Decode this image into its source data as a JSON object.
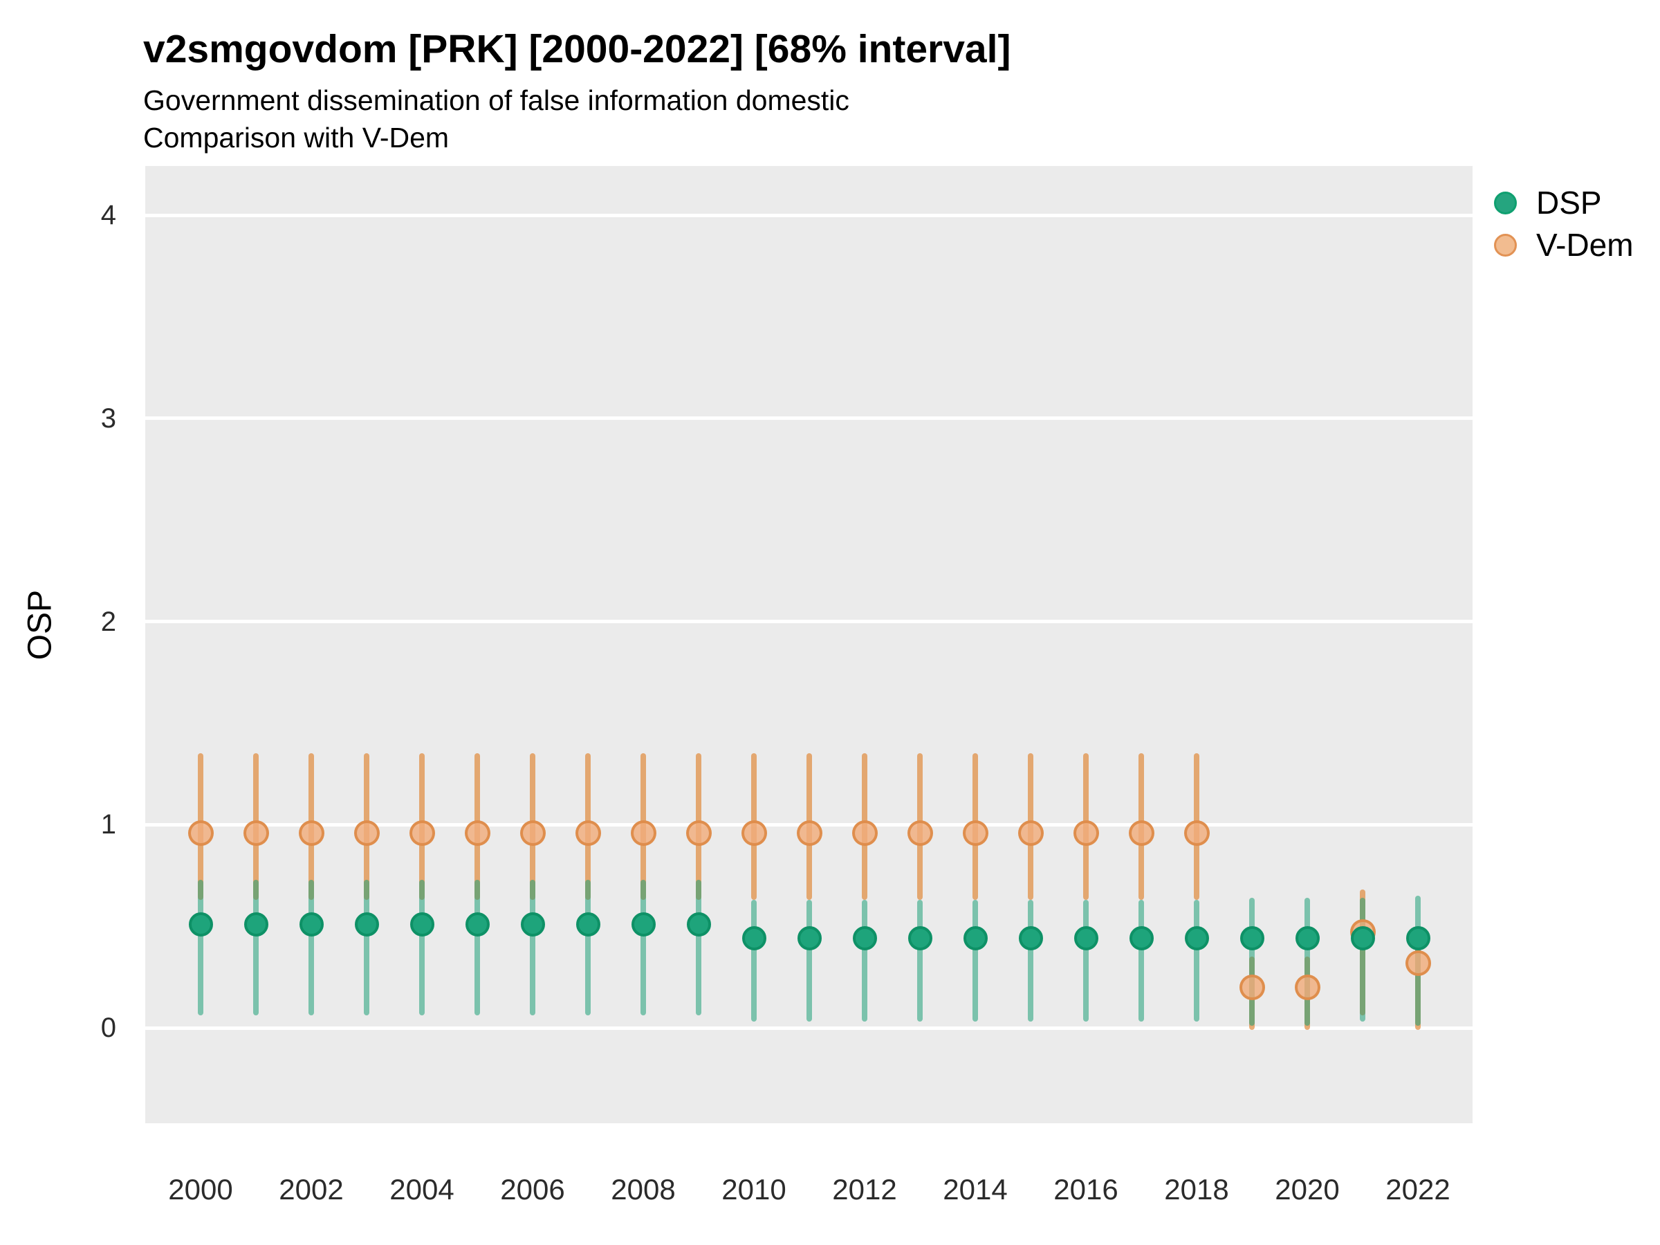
{
  "header": {
    "title": "v2smgovdom [PRK] [2000-2022] [68% interval]",
    "subtitle1": "Government dissemination of false information domestic",
    "subtitle2": "Comparison with V-Dem"
  },
  "axes": {
    "y_label": "OSP",
    "y_ticks": [
      0,
      1,
      2,
      3,
      4
    ],
    "x_ticks": [
      2000,
      2002,
      2004,
      2006,
      2008,
      2010,
      2012,
      2014,
      2016,
      2018,
      2020,
      2022
    ]
  },
  "legend": {
    "items": [
      {
        "label": "DSP",
        "color": "#1FA179"
      },
      {
        "label": "V-Dem",
        "color": "#E08A3C"
      }
    ],
    "position": "right"
  },
  "colors": {
    "panel_background": "#EBEBEB",
    "gridline": "#FFFFFF",
    "dsp_point_fill": "#1EA47B",
    "dsp_point_border": "#0E9166",
    "dsp_bar": "#1FA179",
    "vdem_point_fill": "#F0AC7B",
    "vdem_point_border": "#DE8C4A",
    "vdem_bar": "#E08A3C"
  },
  "chart_data": {
    "type": "scatter",
    "title": "v2smgovdom [PRK] [2000-2022] [68% interval]",
    "subtitle": [
      "Government dissemination of false information domestic",
      "Comparison with V-Dem"
    ],
    "interval": "68%",
    "xlabel": "",
    "ylabel": "OSP",
    "ylim": [
      -0.47,
      4.24
    ],
    "grid": "major-horizontal",
    "legend_position": "right",
    "x": [
      2000,
      2001,
      2002,
      2003,
      2004,
      2005,
      2006,
      2007,
      2008,
      2009,
      2010,
      2011,
      2012,
      2013,
      2014,
      2015,
      2016,
      2017,
      2018,
      2019,
      2020,
      2021,
      2022
    ],
    "series": [
      {
        "name": "DSP",
        "color": "#1FA179",
        "points": [
          {
            "year": 2000,
            "value": 0.51,
            "lo": 0.06,
            "hi": 0.73
          },
          {
            "year": 2001,
            "value": 0.51,
            "lo": 0.06,
            "hi": 0.73
          },
          {
            "year": 2002,
            "value": 0.51,
            "lo": 0.06,
            "hi": 0.73
          },
          {
            "year": 2003,
            "value": 0.51,
            "lo": 0.06,
            "hi": 0.73
          },
          {
            "year": 2004,
            "value": 0.51,
            "lo": 0.06,
            "hi": 0.73
          },
          {
            "year": 2005,
            "value": 0.51,
            "lo": 0.06,
            "hi": 0.73
          },
          {
            "year": 2006,
            "value": 0.51,
            "lo": 0.06,
            "hi": 0.73
          },
          {
            "year": 2007,
            "value": 0.51,
            "lo": 0.06,
            "hi": 0.73
          },
          {
            "year": 2008,
            "value": 0.51,
            "lo": 0.06,
            "hi": 0.73
          },
          {
            "year": 2009,
            "value": 0.51,
            "lo": 0.06,
            "hi": 0.73
          },
          {
            "year": 2010,
            "value": 0.44,
            "lo": 0.03,
            "hi": 0.63
          },
          {
            "year": 2011,
            "value": 0.44,
            "lo": 0.03,
            "hi": 0.63
          },
          {
            "year": 2012,
            "value": 0.44,
            "lo": 0.03,
            "hi": 0.63
          },
          {
            "year": 2013,
            "value": 0.44,
            "lo": 0.03,
            "hi": 0.63
          },
          {
            "year": 2014,
            "value": 0.44,
            "lo": 0.03,
            "hi": 0.63
          },
          {
            "year": 2015,
            "value": 0.44,
            "lo": 0.03,
            "hi": 0.63
          },
          {
            "year": 2016,
            "value": 0.44,
            "lo": 0.03,
            "hi": 0.63
          },
          {
            "year": 2017,
            "value": 0.44,
            "lo": 0.03,
            "hi": 0.63
          },
          {
            "year": 2018,
            "value": 0.44,
            "lo": 0.03,
            "hi": 0.63
          },
          {
            "year": 2019,
            "value": 0.44,
            "lo": 0.01,
            "hi": 0.64
          },
          {
            "year": 2020,
            "value": 0.44,
            "lo": 0.01,
            "hi": 0.64
          },
          {
            "year": 2021,
            "value": 0.44,
            "lo": 0.03,
            "hi": 0.64
          },
          {
            "year": 2022,
            "value": 0.44,
            "lo": 0.01,
            "hi": 0.65
          }
        ]
      },
      {
        "name": "V-Dem",
        "color": "#E08A3C",
        "points": [
          {
            "year": 2000,
            "value": 0.96,
            "lo": 0.63,
            "hi": 1.35
          },
          {
            "year": 2001,
            "value": 0.96,
            "lo": 0.63,
            "hi": 1.35
          },
          {
            "year": 2002,
            "value": 0.96,
            "lo": 0.63,
            "hi": 1.35
          },
          {
            "year": 2003,
            "value": 0.96,
            "lo": 0.63,
            "hi": 1.35
          },
          {
            "year": 2004,
            "value": 0.96,
            "lo": 0.63,
            "hi": 1.35
          },
          {
            "year": 2005,
            "value": 0.96,
            "lo": 0.63,
            "hi": 1.35
          },
          {
            "year": 2006,
            "value": 0.96,
            "lo": 0.63,
            "hi": 1.35
          },
          {
            "year": 2007,
            "value": 0.96,
            "lo": 0.63,
            "hi": 1.35
          },
          {
            "year": 2008,
            "value": 0.96,
            "lo": 0.63,
            "hi": 1.35
          },
          {
            "year": 2009,
            "value": 0.96,
            "lo": 0.63,
            "hi": 1.35
          },
          {
            "year": 2010,
            "value": 0.96,
            "lo": 0.63,
            "hi": 1.35
          },
          {
            "year": 2011,
            "value": 0.96,
            "lo": 0.63,
            "hi": 1.35
          },
          {
            "year": 2012,
            "value": 0.96,
            "lo": 0.63,
            "hi": 1.35
          },
          {
            "year": 2013,
            "value": 0.96,
            "lo": 0.63,
            "hi": 1.35
          },
          {
            "year": 2014,
            "value": 0.96,
            "lo": 0.63,
            "hi": 1.35
          },
          {
            "year": 2015,
            "value": 0.96,
            "lo": 0.63,
            "hi": 1.35
          },
          {
            "year": 2016,
            "value": 0.96,
            "lo": 0.63,
            "hi": 1.35
          },
          {
            "year": 2017,
            "value": 0.96,
            "lo": 0.63,
            "hi": 1.35
          },
          {
            "year": 2018,
            "value": 0.96,
            "lo": 0.63,
            "hi": 1.35
          },
          {
            "year": 2019,
            "value": 0.2,
            "lo": -0.01,
            "hi": 0.35
          },
          {
            "year": 2020,
            "value": 0.2,
            "lo": -0.01,
            "hi": 0.35
          },
          {
            "year": 2021,
            "value": 0.47,
            "lo": 0.06,
            "hi": 0.68
          },
          {
            "year": 2022,
            "value": 0.32,
            "lo": -0.01,
            "hi": 0.5
          }
        ]
      }
    ]
  }
}
